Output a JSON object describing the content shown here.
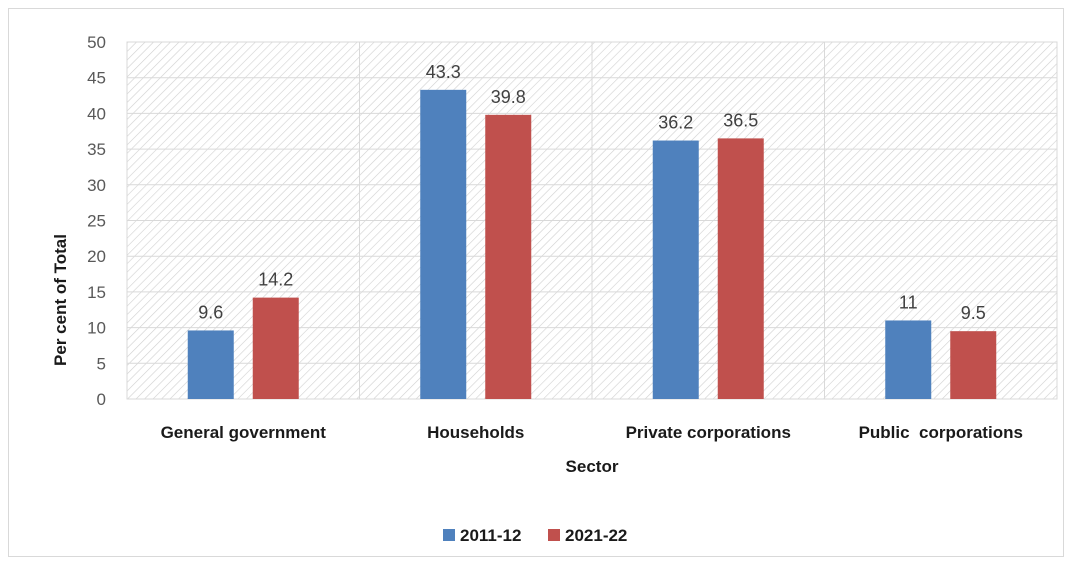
{
  "chart_data": {
    "type": "bar",
    "categories": [
      "General government",
      "Households",
      "Private corporations",
      "Public  corporations"
    ],
    "series": [
      {
        "name": "2011-12",
        "values": [
          9.6,
          43.3,
          36.2,
          11
        ],
        "labels": [
          "9.6",
          "43.3",
          "36.2",
          "11"
        ],
        "color": "#4f81bd"
      },
      {
        "name": "2021-22",
        "values": [
          14.2,
          39.8,
          36.5,
          9.5
        ],
        "labels": [
          "14.2",
          "39.8",
          "36.5",
          "9.5"
        ],
        "color": "#c0504d"
      }
    ],
    "title": "",
    "xlabel": "Sector",
    "ylabel": "Per cent of Total",
    "ylim": [
      0,
      50
    ],
    "yticks": [
      "0",
      "5",
      "10",
      "15",
      "20",
      "25",
      "30",
      "35",
      "40",
      "45",
      "50"
    ],
    "grid": true,
    "legend": "bottom-center",
    "plot_background": "hatched"
  }
}
